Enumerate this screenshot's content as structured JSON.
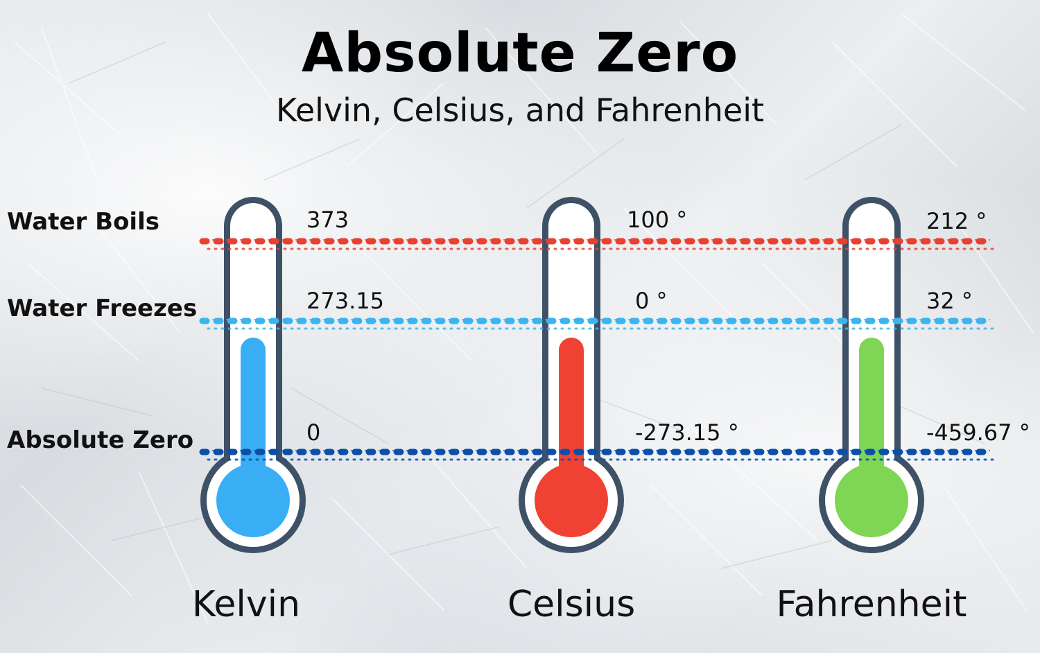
{
  "title": "Absolute Zero",
  "subtitle": "Kelvin, Celsius, and Fahrenheit",
  "rows": [
    {
      "label": "Water Boils",
      "color": "#e8412f"
    },
    {
      "label": "Water Freezes",
      "color": "#3cb4ef"
    },
    {
      "label": "Absolute Zero",
      "color": "#0b4fa8"
    }
  ],
  "scales": [
    {
      "name": "Kelvin",
      "color": "#3aaef5",
      "values": [
        "373",
        "273.15",
        "0"
      ]
    },
    {
      "name": "Celsius",
      "color": "#f04232",
      "values": [
        "100 °",
        "0 °",
        "-273.15 °"
      ]
    },
    {
      "name": "Fahrenheit",
      "color": "#7fd655",
      "values": [
        "212 °",
        "32 °",
        "-459.67 °"
      ]
    }
  ],
  "colors": {
    "thermometer_outline": "#3f5166",
    "tube_fill": "#ffffff"
  }
}
